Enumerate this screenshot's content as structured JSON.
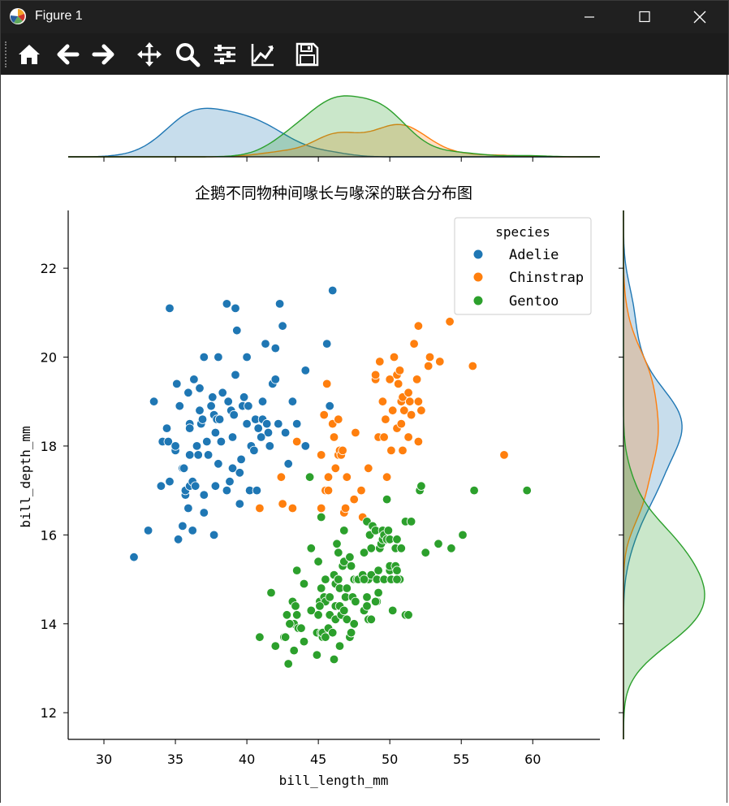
{
  "window": {
    "title": "Figure 1"
  },
  "toolbar": {
    "buttons": [
      "home-icon",
      "back-icon",
      "forward-icon",
      "pan-icon",
      "zoom-icon",
      "configure-subplots-icon",
      "edit-axis-icon",
      "save-icon"
    ]
  },
  "colors": {
    "Adelie": "#1f77b4",
    "Chinstrap": "#ff7f0e",
    "Gentoo": "#2ca02c"
  },
  "chart_data": {
    "type": "scatter",
    "title": "企鹅不同物种间喙长与喙深的联合分布图",
    "xlabel": "bill_length_mm",
    "ylabel": "bill_depth_mm",
    "xlim": [
      27.5,
      64.7
    ],
    "ylim": [
      11.4,
      23.3
    ],
    "xticks": [
      30,
      35,
      40,
      45,
      50,
      55,
      60
    ],
    "yticks": [
      12,
      14,
      16,
      18,
      20,
      22
    ],
    "legend": {
      "title": "species",
      "position": "top-right",
      "entries": [
        "Adelie",
        "Chinstrap",
        "Gentoo"
      ]
    },
    "marginals": {
      "top": "kde of bill_length_mm by species",
      "right": "kde of bill_depth_mm by species"
    },
    "series": [
      {
        "name": "Adelie",
        "color": "#1f77b4",
        "points": [
          [
            32.1,
            15.5
          ],
          [
            33.1,
            16.1
          ],
          [
            33.5,
            19.0
          ],
          [
            34.0,
            17.1
          ],
          [
            34.1,
            18.1
          ],
          [
            34.4,
            18.4
          ],
          [
            34.5,
            18.1
          ],
          [
            34.6,
            21.1
          ],
          [
            34.6,
            17.2
          ],
          [
            35.0,
            17.9
          ],
          [
            35.1,
            19.4
          ],
          [
            35.2,
            15.9
          ],
          [
            35.3,
            18.9
          ],
          [
            35.5,
            16.2
          ],
          [
            35.5,
            17.5
          ],
          [
            35.6,
            17.5
          ],
          [
            35.7,
            16.9
          ],
          [
            35.7,
            17.0
          ],
          [
            35.9,
            19.2
          ],
          [
            35.9,
            16.6
          ],
          [
            36.0,
            18.5
          ],
          [
            36.0,
            17.1
          ],
          [
            36.0,
            17.8
          ],
          [
            36.2,
            16.1
          ],
          [
            36.2,
            17.2
          ],
          [
            36.3,
            19.5
          ],
          [
            36.4,
            17.1
          ],
          [
            36.5,
            18.0
          ],
          [
            36.6,
            17.8
          ],
          [
            36.7,
            18.8
          ],
          [
            36.7,
            19.3
          ],
          [
            36.8,
            18.5
          ],
          [
            36.9,
            18.6
          ],
          [
            37.0,
            16.5
          ],
          [
            37.0,
            16.9
          ],
          [
            37.2,
            18.1
          ],
          [
            37.3,
            17.8
          ],
          [
            37.5,
            18.9
          ],
          [
            37.6,
            19.1
          ],
          [
            37.7,
            18.7
          ],
          [
            37.7,
            16.0
          ],
          [
            37.8,
            18.3
          ],
          [
            37.8,
            17.1
          ],
          [
            37.9,
            18.6
          ],
          [
            38.1,
            18.6
          ],
          [
            38.2,
            18.1
          ],
          [
            38.3,
            19.2
          ],
          [
            38.6,
            21.2
          ],
          [
            38.6,
            17.0
          ],
          [
            38.7,
            19.0
          ],
          [
            38.8,
            17.2
          ],
          [
            38.9,
            18.8
          ],
          [
            39.0,
            17.5
          ],
          [
            39.1,
            18.7
          ],
          [
            39.2,
            19.6
          ],
          [
            39.2,
            21.1
          ],
          [
            39.3,
            20.6
          ],
          [
            39.5,
            17.4
          ],
          [
            39.5,
            16.7
          ],
          [
            39.6,
            17.7
          ],
          [
            39.7,
            18.9
          ],
          [
            39.8,
            19.1
          ],
          [
            40.1,
            18.9
          ],
          [
            40.2,
            17.0
          ],
          [
            40.3,
            18.0
          ],
          [
            40.5,
            17.9
          ],
          [
            40.6,
            18.6
          ],
          [
            40.7,
            17.0
          ],
          [
            40.8,
            18.4
          ],
          [
            40.9,
            16.6
          ],
          [
            41.1,
            18.6
          ],
          [
            41.1,
            19.0
          ],
          [
            41.3,
            20.3
          ],
          [
            41.4,
            18.5
          ],
          [
            41.5,
            18.3
          ],
          [
            41.6,
            18.0
          ],
          [
            41.8,
            19.4
          ],
          [
            42.0,
            20.2
          ],
          [
            42.2,
            18.5
          ],
          [
            42.3,
            21.2
          ],
          [
            42.5,
            20.7
          ],
          [
            42.7,
            18.3
          ],
          [
            42.9,
            17.6
          ],
          [
            43.2,
            19.0
          ],
          [
            43.5,
            18.5
          ],
          [
            44.1,
            19.7
          ],
          [
            44.1,
            18.0
          ],
          [
            45.6,
            20.3
          ],
          [
            45.8,
            18.9
          ],
          [
            46.0,
            21.5
          ],
          [
            37.0,
            20.0
          ],
          [
            38.0,
            20.0
          ],
          [
            40.0,
            20.0
          ],
          [
            35.0,
            18.0
          ],
          [
            36.0,
            18.4
          ],
          [
            38.0,
            17.6
          ],
          [
            39.0,
            18.2
          ],
          [
            41.0,
            18.2
          ],
          [
            42.0,
            19.5
          ],
          [
            40.0,
            18.5
          ]
        ]
      },
      {
        "name": "Chinstrap",
        "color": "#ff7f0e",
        "points": [
          [
            40.9,
            16.6
          ],
          [
            42.4,
            17.3
          ],
          [
            42.5,
            16.7
          ],
          [
            43.2,
            16.6
          ],
          [
            43.5,
            18.1
          ],
          [
            45.2,
            16.6
          ],
          [
            45.2,
            17.8
          ],
          [
            45.4,
            18.7
          ],
          [
            45.5,
            17.0
          ],
          [
            45.6,
            19.4
          ],
          [
            45.7,
            17.3
          ],
          [
            45.7,
            17.0
          ],
          [
            46.0,
            18.5
          ],
          [
            46.1,
            18.2
          ],
          [
            46.2,
            17.5
          ],
          [
            46.4,
            18.6
          ],
          [
            46.4,
            17.8
          ],
          [
            46.5,
            17.9
          ],
          [
            46.6,
            17.8
          ],
          [
            46.7,
            17.9
          ],
          [
            46.8,
            16.5
          ],
          [
            46.9,
            16.6
          ],
          [
            47.0,
            17.3
          ],
          [
            47.5,
            16.8
          ],
          [
            47.6,
            18.3
          ],
          [
            48.1,
            16.4
          ],
          [
            48.5,
            17.5
          ],
          [
            49.0,
            19.5
          ],
          [
            49.0,
            19.6
          ],
          [
            49.2,
            18.2
          ],
          [
            49.3,
            19.9
          ],
          [
            49.5,
            19.0
          ],
          [
            49.6,
            18.2
          ],
          [
            49.7,
            18.6
          ],
          [
            49.8,
            17.3
          ],
          [
            50.0,
            19.5
          ],
          [
            50.1,
            17.9
          ],
          [
            50.2,
            18.8
          ],
          [
            50.3,
            20.0
          ],
          [
            50.5,
            19.6
          ],
          [
            50.5,
            18.4
          ],
          [
            50.6,
            19.4
          ],
          [
            50.7,
            19.7
          ],
          [
            50.8,
            18.5
          ],
          [
            50.8,
            19.0
          ],
          [
            50.9,
            17.9
          ],
          [
            50.9,
            19.1
          ],
          [
            51.0,
            18.8
          ],
          [
            51.3,
            19.2
          ],
          [
            51.3,
            18.2
          ],
          [
            51.4,
            19.0
          ],
          [
            51.5,
            18.7
          ],
          [
            51.7,
            20.3
          ],
          [
            51.9,
            19.5
          ],
          [
            52.0,
            18.1
          ],
          [
            52.0,
            19.0
          ],
          [
            52.0,
            20.7
          ],
          [
            52.2,
            18.8
          ],
          [
            52.7,
            19.8
          ],
          [
            52.8,
            20.0
          ],
          [
            53.5,
            19.9
          ],
          [
            54.2,
            20.8
          ],
          [
            55.8,
            19.8
          ],
          [
            58.0,
            17.8
          ],
          [
            48.0,
            17.0
          ]
        ]
      },
      {
        "name": "Gentoo",
        "color": "#2ca02c",
        "points": [
          [
            40.9,
            13.7
          ],
          [
            41.7,
            14.7
          ],
          [
            42.0,
            13.5
          ],
          [
            42.6,
            13.7
          ],
          [
            42.7,
            13.7
          ],
          [
            42.8,
            14.2
          ],
          [
            42.9,
            13.1
          ],
          [
            43.2,
            14.5
          ],
          [
            43.3,
            13.4
          ],
          [
            43.3,
            14.0
          ],
          [
            43.4,
            14.4
          ],
          [
            43.5,
            14.2
          ],
          [
            43.5,
            15.2
          ],
          [
            43.6,
            13.9
          ],
          [
            43.8,
            13.9
          ],
          [
            44.0,
            13.6
          ],
          [
            44.4,
            17.3
          ],
          [
            44.5,
            14.3
          ],
          [
            44.5,
            15.7
          ],
          [
            44.9,
            13.3
          ],
          [
            44.9,
            13.8
          ],
          [
            45.0,
            15.4
          ],
          [
            45.1,
            14.5
          ],
          [
            45.2,
            13.8
          ],
          [
            45.2,
            14.8
          ],
          [
            45.2,
            16.4
          ],
          [
            45.3,
            13.7
          ],
          [
            45.3,
            13.8
          ],
          [
            45.4,
            14.6
          ],
          [
            45.5,
            13.7
          ],
          [
            45.5,
            14.5
          ],
          [
            45.5,
            15.0
          ],
          [
            45.7,
            13.9
          ],
          [
            45.8,
            14.2
          ],
          [
            45.8,
            14.6
          ],
          [
            46.1,
            13.2
          ],
          [
            46.1,
            15.1
          ],
          [
            46.2,
            14.1
          ],
          [
            46.2,
            14.4
          ],
          [
            46.2,
            14.9
          ],
          [
            46.3,
            15.8
          ],
          [
            46.4,
            15.0
          ],
          [
            46.4,
            15.6
          ],
          [
            46.5,
            13.5
          ],
          [
            46.5,
            14.4
          ],
          [
            46.5,
            14.8
          ],
          [
            46.6,
            14.2
          ],
          [
            46.7,
            15.3
          ],
          [
            46.8,
            14.3
          ],
          [
            46.8,
            15.4
          ],
          [
            46.8,
            16.1
          ],
          [
            46.9,
            14.6
          ],
          [
            47.0,
            14.1
          ],
          [
            47.2,
            13.7
          ],
          [
            47.2,
            15.5
          ],
          [
            47.3,
            15.3
          ],
          [
            47.4,
            14.6
          ],
          [
            47.5,
            14.0
          ],
          [
            47.5,
            15.0
          ],
          [
            47.6,
            14.5
          ],
          [
            47.7,
            15.0
          ],
          [
            47.8,
            15.0
          ],
          [
            48.1,
            15.1
          ],
          [
            48.2,
            14.3
          ],
          [
            48.2,
            15.6
          ],
          [
            48.4,
            14.4
          ],
          [
            48.4,
            14.6
          ],
          [
            48.4,
            16.3
          ],
          [
            48.5,
            14.1
          ],
          [
            48.5,
            15.0
          ],
          [
            48.6,
            16.0
          ],
          [
            48.7,
            14.1
          ],
          [
            48.7,
            15.1
          ],
          [
            48.7,
            15.7
          ],
          [
            48.8,
            16.2
          ],
          [
            49.0,
            16.1
          ],
          [
            49.1,
            14.5
          ],
          [
            49.1,
            15.0
          ],
          [
            49.2,
            15.2
          ],
          [
            49.3,
            15.7
          ],
          [
            49.4,
            15.8
          ],
          [
            49.5,
            15.9
          ],
          [
            49.5,
            16.1
          ],
          [
            49.6,
            15.0
          ],
          [
            49.6,
            16.0
          ],
          [
            49.8,
            15.9
          ],
          [
            49.8,
            16.8
          ],
          [
            49.9,
            16.1
          ],
          [
            50.0,
            15.2
          ],
          [
            50.0,
            15.3
          ],
          [
            50.0,
            15.9
          ],
          [
            50.1,
            15.0
          ],
          [
            50.2,
            14.3
          ],
          [
            50.4,
            15.3
          ],
          [
            50.4,
            15.7
          ],
          [
            50.5,
            15.2
          ],
          [
            50.5,
            15.9
          ],
          [
            50.7,
            15.0
          ],
          [
            50.8,
            15.7
          ],
          [
            51.1,
            14.2
          ],
          [
            51.1,
            16.3
          ],
          [
            51.3,
            14.2
          ],
          [
            51.5,
            16.3
          ],
          [
            52.1,
            17.0
          ],
          [
            52.2,
            17.1
          ],
          [
            52.5,
            15.6
          ],
          [
            53.4,
            15.8
          ],
          [
            54.3,
            15.7
          ],
          [
            55.1,
            16.0
          ],
          [
            55.9,
            17.0
          ],
          [
            59.6,
            17.0
          ],
          [
            45.1,
            14.4
          ],
          [
            46.4,
            15.0
          ],
          [
            47.3,
            13.8
          ],
          [
            49.2,
            14.7
          ],
          [
            48.2,
            15.0
          ],
          [
            44.0,
            14.9
          ],
          [
            43.0,
            14.0
          ],
          [
            45.0,
            14.2
          ],
          [
            46.0,
            13.8
          ],
          [
            47.0,
            14.8
          ],
          [
            49.0,
            14.5
          ],
          [
            50.5,
            15.0
          ]
        ]
      }
    ]
  }
}
